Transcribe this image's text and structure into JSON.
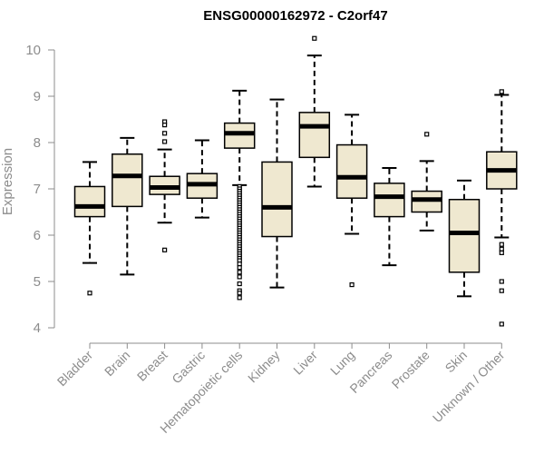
{
  "chart_data": {
    "type": "box",
    "title": "ENSG00000162972 - C2orf47",
    "ylabel": "Expression",
    "ylim": [
      4,
      10
    ],
    "yticks": [
      4,
      5,
      6,
      7,
      8,
      9,
      10
    ],
    "grid": false,
    "colors": {
      "box_fill": "#efe8d0",
      "stroke": "#000000",
      "axis": "#8c8c8c"
    },
    "categories": [
      "Bladder",
      "Brain",
      "Breast",
      "Gastric",
      "Hematopoietic cells",
      "Kidney",
      "Liver",
      "Lung",
      "Pancreas",
      "Prostate",
      "Skin",
      "Unknown / Other"
    ],
    "boxes": [
      {
        "q1": 6.4,
        "median": 6.62,
        "q3": 7.05,
        "whisker_low": 5.4,
        "whisker_high": 7.58,
        "outliers": [
          4.75
        ]
      },
      {
        "q1": 6.62,
        "median": 7.28,
        "q3": 7.75,
        "whisker_low": 5.15,
        "whisker_high": 8.1,
        "outliers": []
      },
      {
        "q1": 6.88,
        "median": 7.03,
        "q3": 7.27,
        "whisker_low": 6.27,
        "whisker_high": 7.85,
        "outliers": [
          8.45,
          8.38,
          8.2,
          8.02,
          5.68
        ]
      },
      {
        "q1": 6.8,
        "median": 7.1,
        "q3": 7.33,
        "whisker_low": 6.38,
        "whisker_high": 8.05,
        "outliers": []
      },
      {
        "q1": 7.88,
        "median": 8.2,
        "q3": 8.42,
        "whisker_low": 7.08,
        "whisker_high": 9.12,
        "outliers": [
          7.05,
          7.0,
          6.95,
          6.9,
          6.85,
          6.8,
          6.75,
          6.7,
          6.65,
          6.6,
          6.55,
          6.5,
          6.45,
          6.4,
          6.35,
          6.3,
          6.25,
          6.2,
          6.15,
          6.1,
          6.05,
          6.0,
          5.95,
          5.9,
          5.85,
          5.8,
          5.75,
          5.7,
          5.65,
          5.6,
          5.55,
          5.5,
          5.45,
          5.38,
          5.3,
          5.2,
          5.1,
          4.95,
          4.8,
          4.75,
          4.65
        ]
      },
      {
        "q1": 5.97,
        "median": 6.6,
        "q3": 7.58,
        "whisker_low": 4.87,
        "whisker_high": 8.93,
        "outliers": []
      },
      {
        "q1": 7.68,
        "median": 8.35,
        "q3": 8.65,
        "whisker_low": 7.05,
        "whisker_high": 9.88,
        "outliers": [
          10.25
        ]
      },
      {
        "q1": 6.8,
        "median": 7.25,
        "q3": 7.95,
        "whisker_low": 6.03,
        "whisker_high": 8.6,
        "outliers": [
          4.93
        ]
      },
      {
        "q1": 6.4,
        "median": 6.83,
        "q3": 7.12,
        "whisker_low": 5.35,
        "whisker_high": 7.45,
        "outliers": []
      },
      {
        "q1": 6.5,
        "median": 6.77,
        "q3": 6.95,
        "whisker_low": 6.1,
        "whisker_high": 7.6,
        "outliers": [
          8.18
        ]
      },
      {
        "q1": 5.2,
        "median": 6.05,
        "q3": 6.77,
        "whisker_low": 4.68,
        "whisker_high": 7.18,
        "outliers": []
      },
      {
        "q1": 7.0,
        "median": 7.4,
        "q3": 7.8,
        "whisker_low": 5.95,
        "whisker_high": 9.03,
        "outliers": [
          9.1,
          5.8,
          5.7,
          5.62,
          5.0,
          4.8,
          4.08
        ]
      }
    ]
  }
}
